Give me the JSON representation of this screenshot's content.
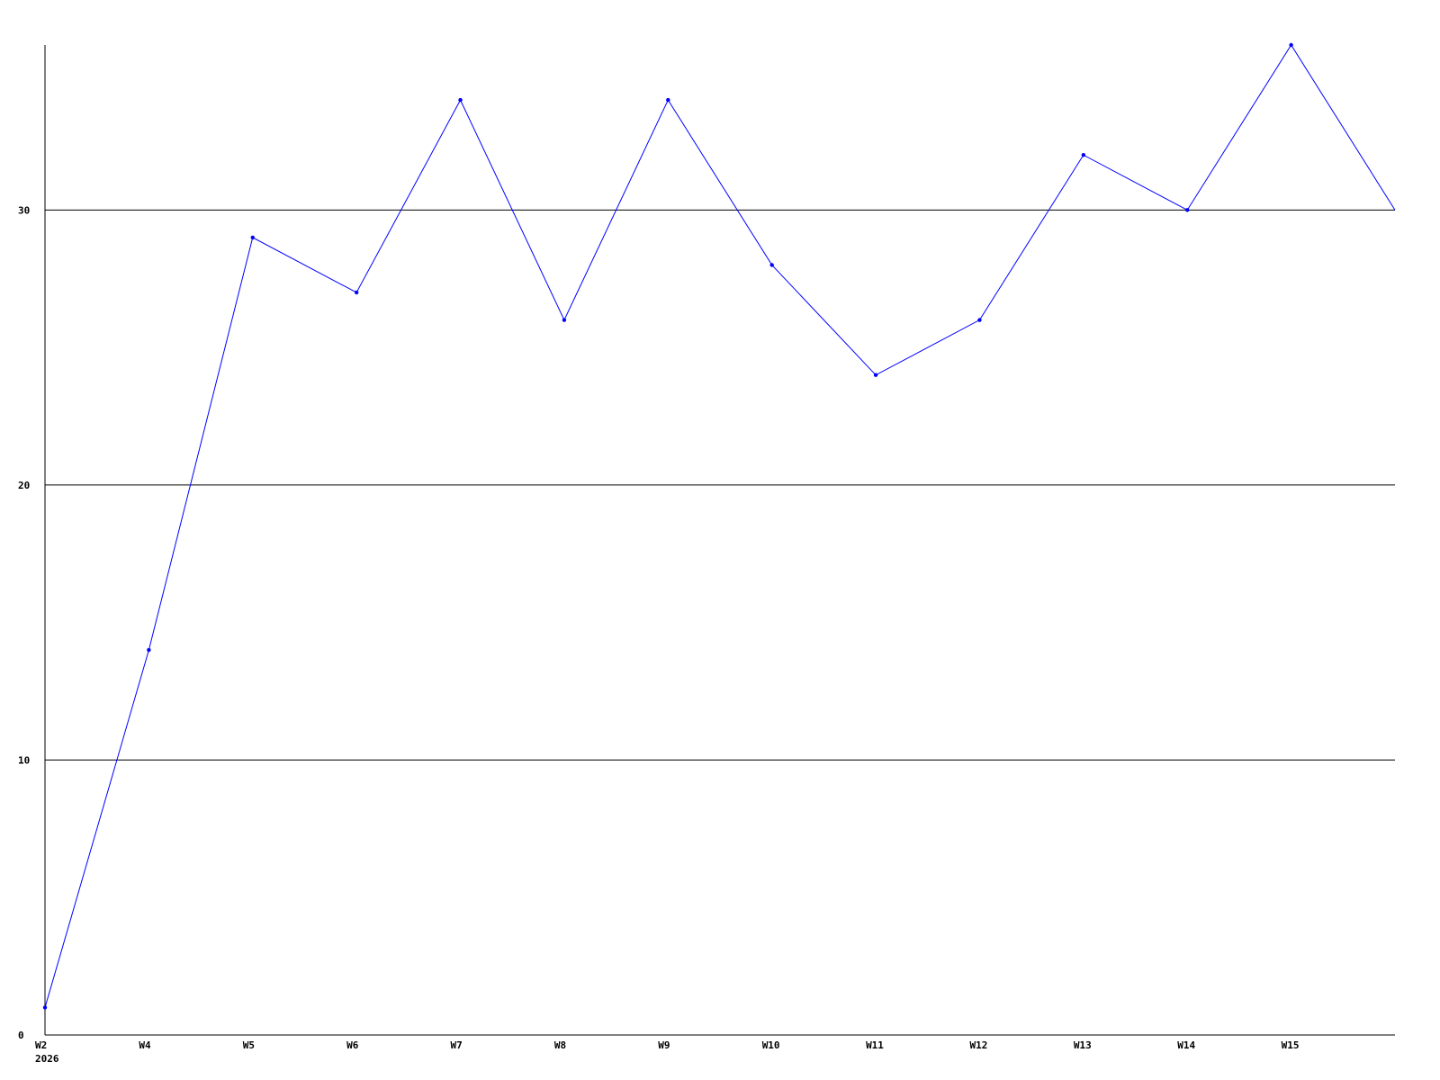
{
  "chart_data": {
    "type": "line",
    "title": "",
    "xlabel": "",
    "ylabel": "",
    "categories": [
      "W2",
      "W4",
      "W5",
      "W6",
      "W7",
      "W8",
      "W9",
      "W10",
      "W11",
      "W12",
      "W13",
      "W14",
      "W15",
      ""
    ],
    "x_sublabel": "2026",
    "series": [
      {
        "values": [
          1,
          14,
          29,
          27,
          34,
          26,
          34,
          28,
          24,
          26,
          32,
          30,
          36,
          30
        ],
        "color": "#0000ff"
      }
    ],
    "ylim": [
      0,
      36
    ],
    "yticks": [
      0,
      10,
      20,
      30
    ],
    "grid": true,
    "legend": "none"
  }
}
